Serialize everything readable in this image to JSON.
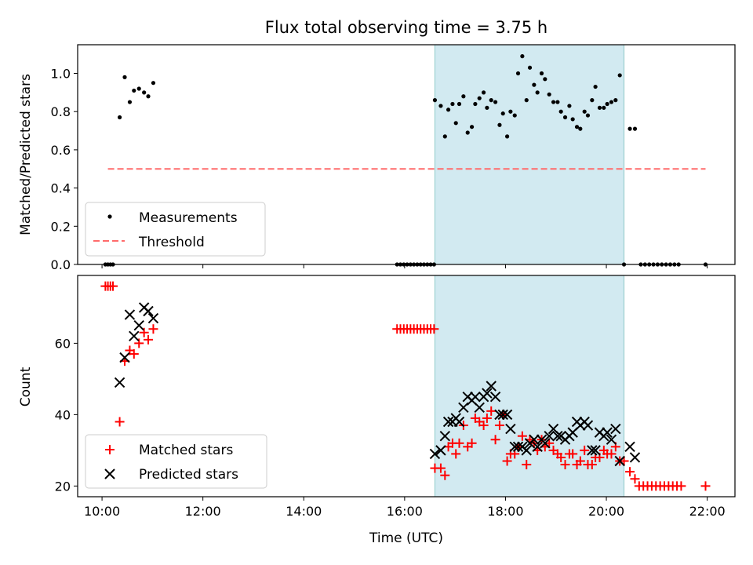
{
  "chart_data": [
    {
      "type": "scatter",
      "title": "Flux total observing time = 3.75 h",
      "xlabel": "",
      "ylabel": "Matched/Predicted stars",
      "xlim": [
        "09:31",
        "22:33"
      ],
      "ylim": [
        0,
        1.15
      ],
      "yticks": [
        0.0,
        0.2,
        0.4,
        0.6,
        0.8,
        1.0
      ],
      "ytick_labels": [
        "0.0",
        "0.2",
        "0.4",
        "0.6",
        "0.8",
        "1.0"
      ],
      "highlight_span": [
        "16:36",
        "20:21"
      ],
      "legend_position": "lower-left",
      "series": [
        {
          "name": "Measurements",
          "marker": "dot",
          "color": "#000000",
          "points": [
            [
              "10:04",
              0
            ],
            [
              "10:07",
              0
            ],
            [
              "10:10",
              0
            ],
            [
              "10:13",
              0
            ],
            [
              "10:21",
              0.77
            ],
            [
              "10:27",
              0.98
            ],
            [
              "10:33",
              0.85
            ],
            [
              "10:38",
              0.91
            ],
            [
              "10:44",
              0.92
            ],
            [
              "10:50",
              0.9
            ],
            [
              "10:55",
              0.88
            ],
            [
              "11:01",
              0.95
            ],
            [
              "15:51",
              0
            ],
            [
              "15:55",
              0
            ],
            [
              "15:59",
              0
            ],
            [
              "16:03",
              0
            ],
            [
              "16:07",
              0
            ],
            [
              "16:11",
              0
            ],
            [
              "16:15",
              0
            ],
            [
              "16:19",
              0
            ],
            [
              "16:23",
              0
            ],
            [
              "16:27",
              0
            ],
            [
              "16:31",
              0
            ],
            [
              "16:35",
              0
            ],
            [
              "16:36",
              0.86
            ],
            [
              "16:43",
              0.83
            ],
            [
              "16:48",
              0.67
            ],
            [
              "16:52",
              0.81
            ],
            [
              "16:57",
              0.84
            ],
            [
              "17:01",
              0.74
            ],
            [
              "17:05",
              0.84
            ],
            [
              "17:10",
              0.88
            ],
            [
              "17:15",
              0.69
            ],
            [
              "17:20",
              0.72
            ],
            [
              "17:24",
              0.84
            ],
            [
              "17:29",
              0.87
            ],
            [
              "17:34",
              0.9
            ],
            [
              "17:38",
              0.82
            ],
            [
              "17:43",
              0.86
            ],
            [
              "17:48",
              0.85
            ],
            [
              "17:53",
              0.73
            ],
            [
              "17:57",
              0.79
            ],
            [
              "18:02",
              0.67
            ],
            [
              "18:06",
              0.8
            ],
            [
              "18:11",
              0.78
            ],
            [
              "18:15",
              1.0
            ],
            [
              "18:20",
              1.09
            ],
            [
              "18:25",
              0.86
            ],
            [
              "18:29",
              1.03
            ],
            [
              "18:34",
              0.94
            ],
            [
              "18:38",
              0.9
            ],
            [
              "18:43",
              1.0
            ],
            [
              "18:47",
              0.97
            ],
            [
              "18:52",
              0.89
            ],
            [
              "18:57",
              0.85
            ],
            [
              "19:02",
              0.85
            ],
            [
              "19:06",
              0.8
            ],
            [
              "19:11",
              0.77
            ],
            [
              "19:16",
              0.83
            ],
            [
              "19:20",
              0.76
            ],
            [
              "19:25",
              0.72
            ],
            [
              "19:29",
              0.71
            ],
            [
              "19:34",
              0.8
            ],
            [
              "19:38",
              0.78
            ],
            [
              "19:43",
              0.86
            ],
            [
              "19:47",
              0.93
            ],
            [
              "19:52",
              0.82
            ],
            [
              "19:57",
              0.82
            ],
            [
              "20:01",
              0.84
            ],
            [
              "20:06",
              0.85
            ],
            [
              "20:11",
              0.86
            ],
            [
              "20:16",
              0.99
            ],
            [
              "20:21",
              0
            ],
            [
              "20:28",
              0.71
            ],
            [
              "20:34",
              0.71
            ],
            [
              "20:41",
              0
            ],
            [
              "20:46",
              0
            ],
            [
              "20:51",
              0
            ],
            [
              "20:56",
              0
            ],
            [
              "21:01",
              0
            ],
            [
              "21:06",
              0
            ],
            [
              "21:11",
              0
            ],
            [
              "21:16",
              0
            ],
            [
              "21:21",
              0
            ],
            [
              "21:26",
              0
            ],
            [
              "21:58",
              0
            ]
          ]
        },
        {
          "name": "Threshold",
          "marker": "dashed-line",
          "color": "#ff6b6b",
          "points": [
            [
              "10:07",
              0.5
            ],
            [
              "21:58",
              0.5
            ]
          ]
        }
      ]
    },
    {
      "type": "scatter",
      "title": "",
      "xlabel": "Time (UTC)",
      "ylabel": "Count",
      "xlim": [
        "09:31",
        "22:33"
      ],
      "ylim": [
        17,
        79
      ],
      "xticks": [
        "10:00",
        "12:00",
        "14:00",
        "16:00",
        "18:00",
        "20:00",
        "22:00"
      ],
      "yticks": [
        20,
        40,
        60
      ],
      "ytick_labels": [
        "20",
        "40",
        "60"
      ],
      "highlight_span": [
        "16:36",
        "20:21"
      ],
      "legend_position": "lower-left",
      "series": [
        {
          "name": "Matched stars",
          "marker": "plus",
          "color": "#ff0000",
          "points": [
            [
              "10:04",
              76
            ],
            [
              "10:07",
              76
            ],
            [
              "10:10",
              76
            ],
            [
              "10:13",
              76
            ],
            [
              "10:21",
              38
            ],
            [
              "10:27",
              55
            ],
            [
              "10:33",
              58
            ],
            [
              "10:38",
              57
            ],
            [
              "10:44",
              60
            ],
            [
              "10:50",
              63
            ],
            [
              "10:55",
              61
            ],
            [
              "11:01",
              64
            ],
            [
              "15:51",
              64
            ],
            [
              "15:55",
              64
            ],
            [
              "15:59",
              64
            ],
            [
              "16:03",
              64
            ],
            [
              "16:07",
              64
            ],
            [
              "16:11",
              64
            ],
            [
              "16:15",
              64
            ],
            [
              "16:19",
              64
            ],
            [
              "16:23",
              64
            ],
            [
              "16:27",
              64
            ],
            [
              "16:31",
              64
            ],
            [
              "16:35",
              64
            ],
            [
              "16:36",
              25
            ],
            [
              "16:43",
              25
            ],
            [
              "16:48",
              23
            ],
            [
              "16:52",
              31
            ],
            [
              "16:57",
              32
            ],
            [
              "17:01",
              29
            ],
            [
              "17:05",
              32
            ],
            [
              "17:10",
              37
            ],
            [
              "17:15",
              31
            ],
            [
              "17:20",
              32
            ],
            [
              "17:24",
              39
            ],
            [
              "17:29",
              38
            ],
            [
              "17:34",
              37
            ],
            [
              "17:38",
              39
            ],
            [
              "17:43",
              41
            ],
            [
              "17:48",
              33
            ],
            [
              "17:53",
              37
            ],
            [
              "17:57",
              40
            ],
            [
              "18:02",
              27
            ],
            [
              "18:06",
              29
            ],
            [
              "18:11",
              29
            ],
            [
              "18:15",
              31
            ],
            [
              "18:20",
              34
            ],
            [
              "18:25",
              26
            ],
            [
              "18:29",
              33
            ],
            [
              "18:34",
              32
            ],
            [
              "18:38",
              30
            ],
            [
              "18:43",
              33
            ],
            [
              "18:47",
              31
            ],
            [
              "18:52",
              32
            ],
            [
              "18:57",
              30
            ],
            [
              "19:02",
              29
            ],
            [
              "19:06",
              28
            ],
            [
              "19:11",
              26
            ],
            [
              "19:16",
              29
            ],
            [
              "19:20",
              29
            ],
            [
              "19:25",
              26
            ],
            [
              "19:29",
              27
            ],
            [
              "19:34",
              30
            ],
            [
              "19:38",
              26
            ],
            [
              "19:43",
              26
            ],
            [
              "19:47",
              28
            ],
            [
              "19:52",
              28
            ],
            [
              "19:57",
              30
            ],
            [
              "20:01",
              29
            ],
            [
              "20:06",
              29
            ],
            [
              "20:11",
              31
            ],
            [
              "20:16",
              27
            ],
            [
              "20:21",
              27
            ],
            [
              "20:28",
              24
            ],
            [
              "20:34",
              22
            ],
            [
              "20:39",
              20
            ],
            [
              "20:44",
              20
            ],
            [
              "20:49",
              20
            ],
            [
              "20:54",
              20
            ],
            [
              "20:59",
              20
            ],
            [
              "21:04",
              20
            ],
            [
              "21:09",
              20
            ],
            [
              "21:14",
              20
            ],
            [
              "21:19",
              20
            ],
            [
              "21:24",
              20
            ],
            [
              "21:29",
              20
            ],
            [
              "21:58",
              20
            ]
          ]
        },
        {
          "name": "Predicted stars",
          "marker": "x",
          "color": "#000000",
          "points": [
            [
              "10:21",
              49
            ],
            [
              "10:27",
              56
            ],
            [
              "10:33",
              68
            ],
            [
              "10:38",
              62
            ],
            [
              "10:44",
              65
            ],
            [
              "10:50",
              70
            ],
            [
              "10:55",
              69
            ],
            [
              "11:01",
              67
            ],
            [
              "16:36",
              29
            ],
            [
              "16:43",
              30
            ],
            [
              "16:48",
              34
            ],
            [
              "16:52",
              38
            ],
            [
              "16:57",
              38
            ],
            [
              "17:01",
              39
            ],
            [
              "17:05",
              38
            ],
            [
              "17:10",
              42
            ],
            [
              "17:15",
              45
            ],
            [
              "17:20",
              44
            ],
            [
              "17:24",
              45
            ],
            [
              "17:29",
              42
            ],
            [
              "17:34",
              45
            ],
            [
              "17:38",
              46
            ],
            [
              "17:43",
              48
            ],
            [
              "17:48",
              45
            ],
            [
              "17:53",
              40
            ],
            [
              "17:57",
              40
            ],
            [
              "18:02",
              40
            ],
            [
              "18:06",
              36
            ],
            [
              "18:11",
              31
            ],
            [
              "18:15",
              31
            ],
            [
              "18:20",
              31
            ],
            [
              "18:25",
              30
            ],
            [
              "18:29",
              32
            ],
            [
              "18:34",
              33
            ],
            [
              "18:38",
              31
            ],
            [
              "18:43",
              33
            ],
            [
              "18:47",
              32
            ],
            [
              "18:52",
              34
            ],
            [
              "18:57",
              36
            ],
            [
              "19:02",
              34
            ],
            [
              "19:06",
              34
            ],
            [
              "19:11",
              33
            ],
            [
              "19:16",
              34
            ],
            [
              "19:20",
              35
            ],
            [
              "19:25",
              38
            ],
            [
              "19:29",
              37
            ],
            [
              "19:34",
              38
            ],
            [
              "19:38",
              37
            ],
            [
              "19:43",
              30
            ],
            [
              "19:47",
              30
            ],
            [
              "19:52",
              35
            ],
            [
              "19:57",
              34
            ],
            [
              "20:01",
              35
            ],
            [
              "20:06",
              33
            ],
            [
              "20:11",
              36
            ],
            [
              "20:16",
              27
            ],
            [
              "20:28",
              31
            ],
            [
              "20:34",
              28
            ]
          ]
        }
      ]
    }
  ],
  "colors": {
    "span_fill": "#add8e6",
    "span_edge": "#8fc9c9",
    "measurement": "#000000",
    "threshold": "#ff6b6b",
    "matched": "#ff0000",
    "predicted": "#000000"
  }
}
